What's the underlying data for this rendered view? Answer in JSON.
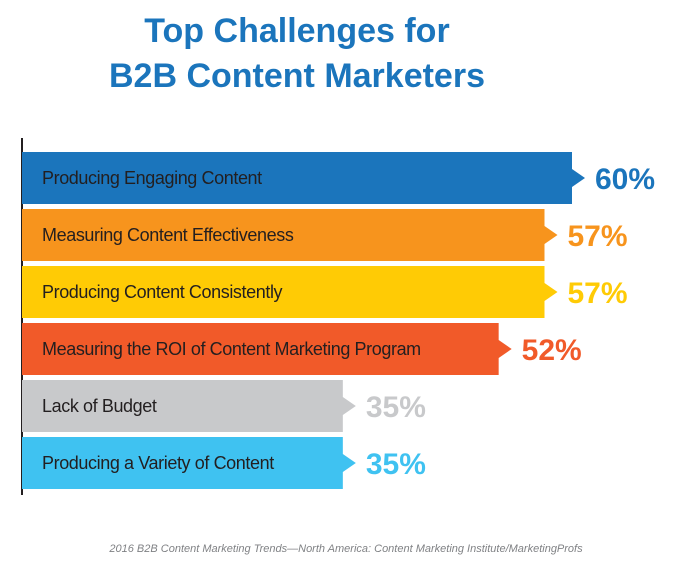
{
  "chart_data": {
    "type": "bar",
    "orientation": "horizontal",
    "title": [
      "Top Challenges for",
      "B2B Content Marketers"
    ],
    "categories": [
      "Producing Engaging Content",
      "Measuring Content Effectiveness",
      "Producing Content Consistently",
      "Measuring the ROI of Content Marketing Program",
      "Lack of Budget",
      "Producing a Variety of Content"
    ],
    "values": [
      60,
      57,
      57,
      52,
      35,
      35
    ],
    "value_labels": [
      "60%",
      "57%",
      "57%",
      "52%",
      "35%",
      "35%"
    ],
    "colors": [
      "#1b75bc",
      "#f7941d",
      "#ffcb05",
      "#f15a29",
      "#c8c9cb",
      "#3fc2f1"
    ],
    "source": "2016 B2B Content Marketing Trends—North America: Content Marketing Institute/MarketingProfs"
  }
}
